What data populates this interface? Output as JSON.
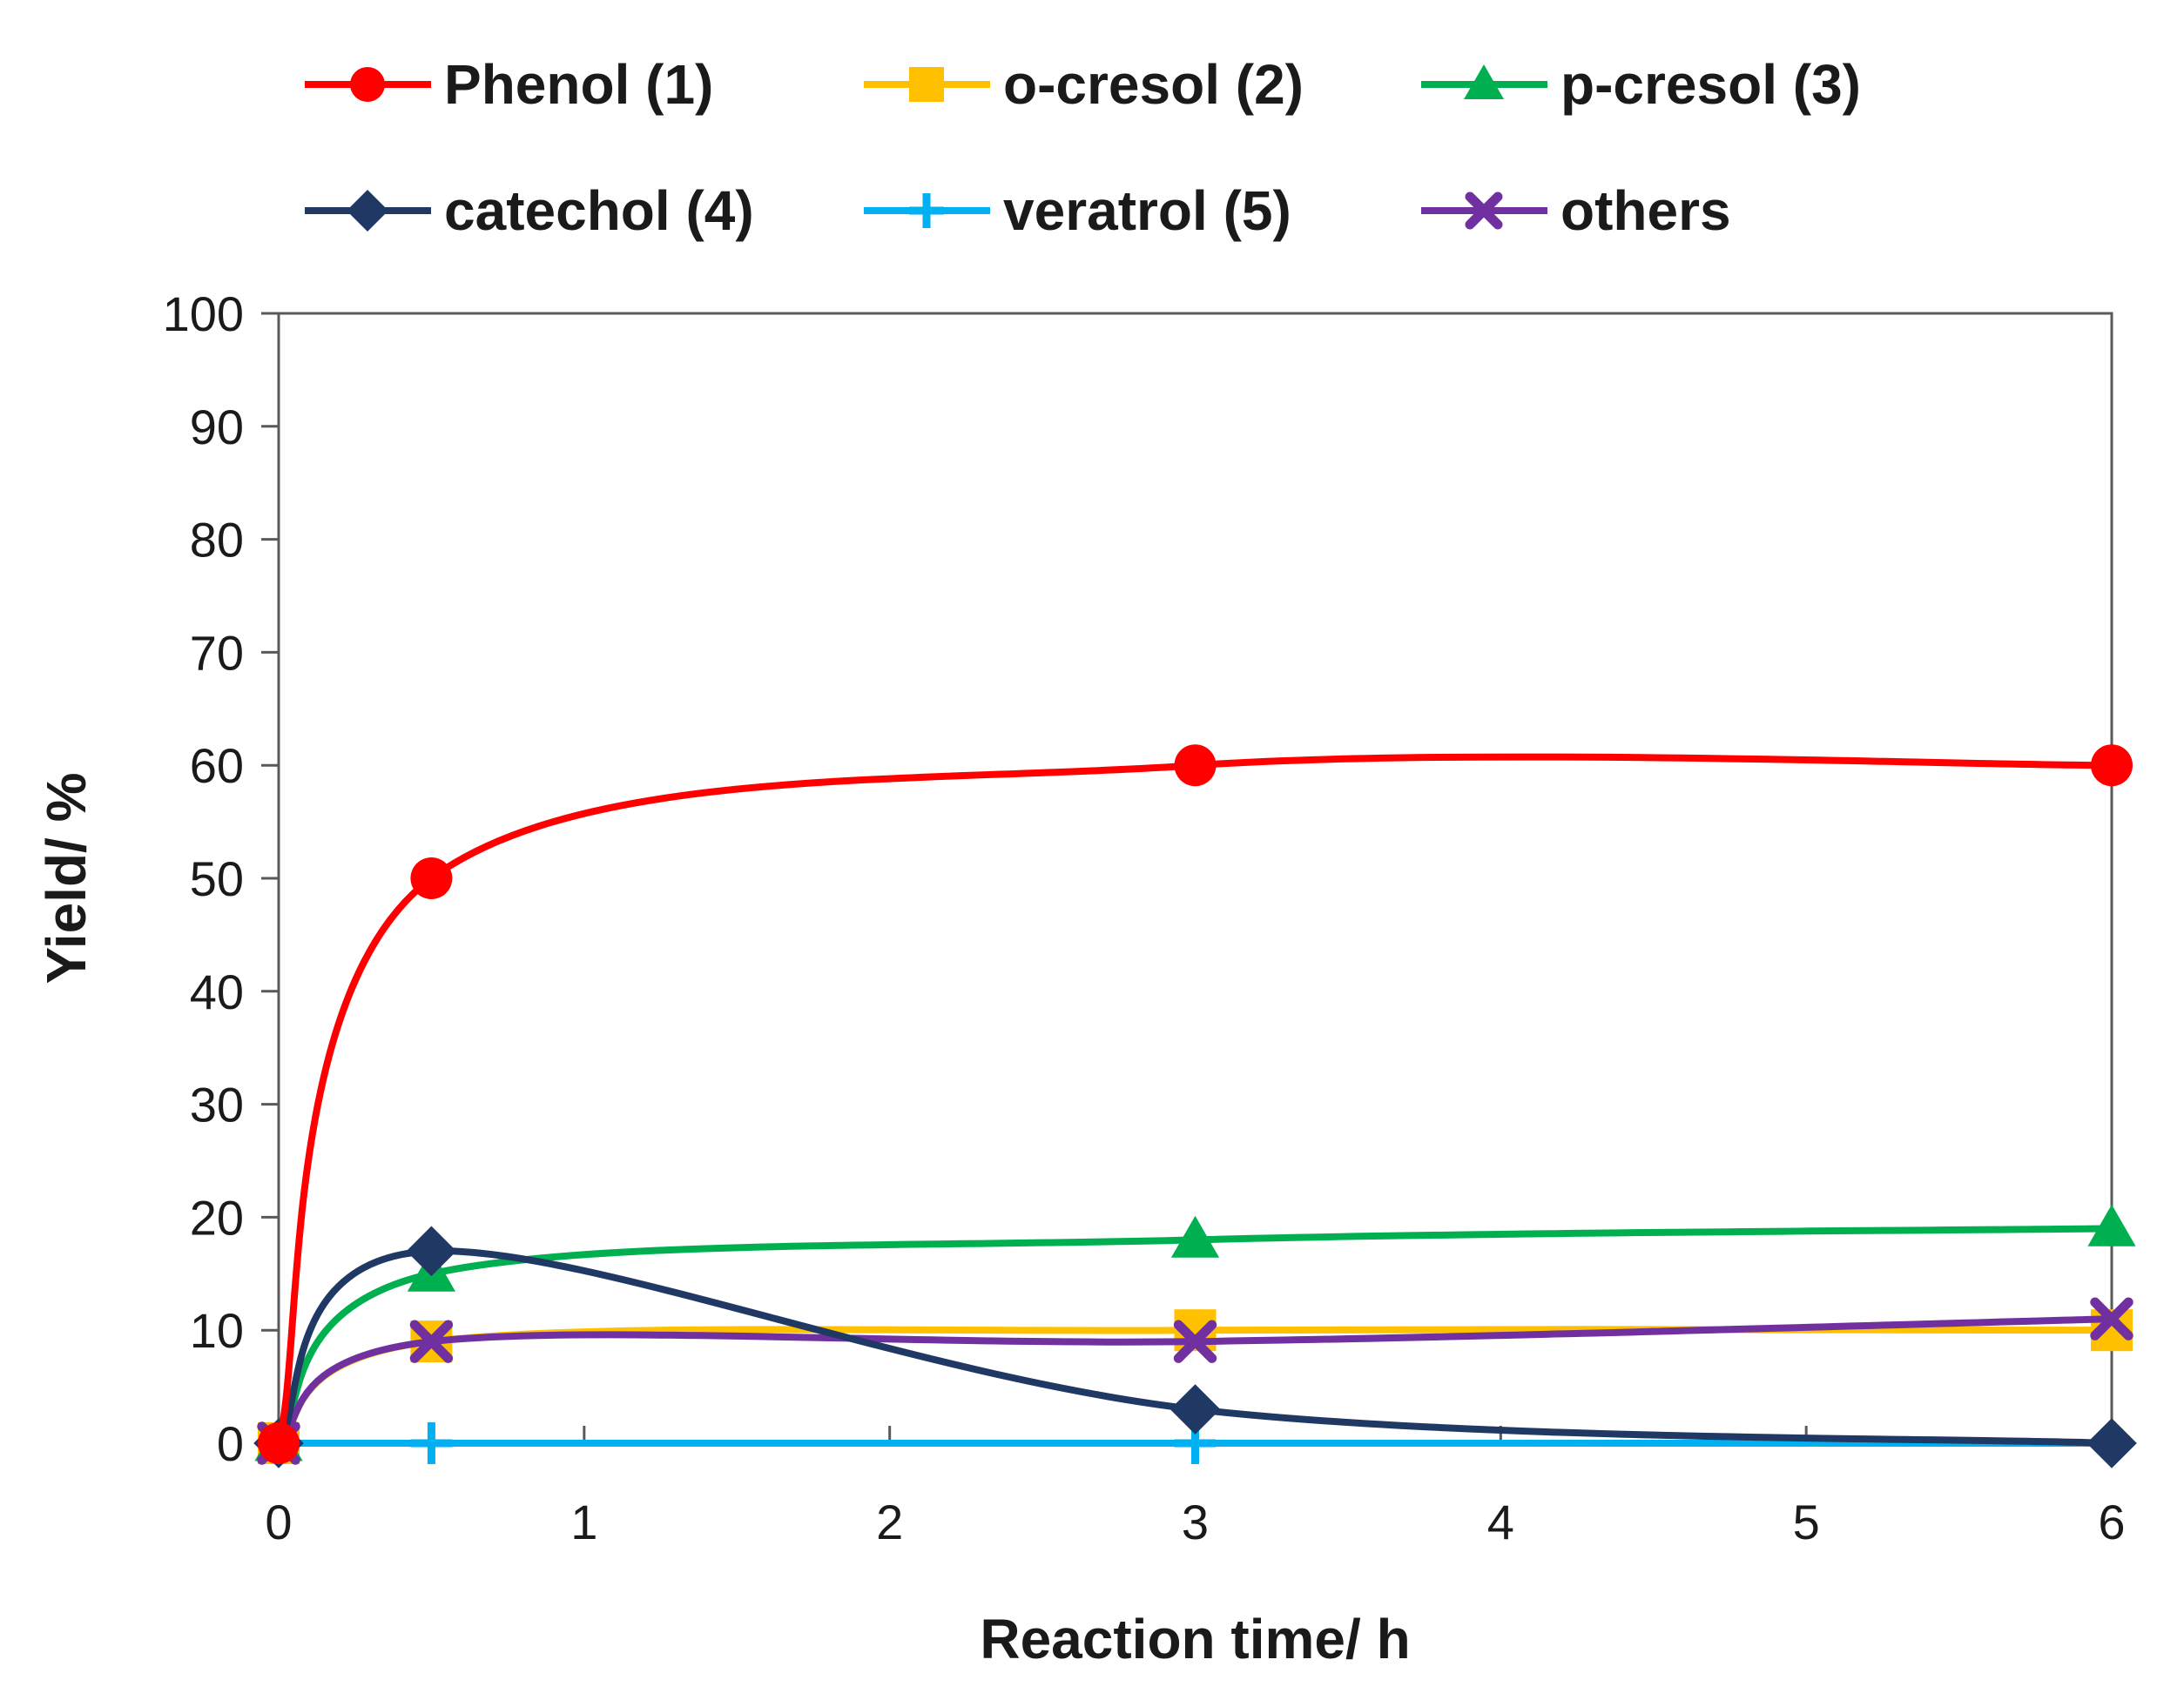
{
  "chart_data": {
    "type": "line",
    "title": "",
    "xlabel": "Reaction time/ h",
    "ylabel": "Yield/ %",
    "xlim": [
      0,
      6
    ],
    "ylim": [
      0,
      100
    ],
    "xticks": [
      0,
      1,
      2,
      3,
      4,
      5,
      6
    ],
    "yticks": [
      0,
      10,
      20,
      30,
      40,
      50,
      60,
      70,
      80,
      90,
      100
    ],
    "grid": false,
    "legend_position": "top",
    "series": [
      {
        "name": "Phenol (1)",
        "color": "#ff0000",
        "marker": "circle",
        "x": [
          0,
          0.5,
          3,
          6
        ],
        "y": [
          0,
          50,
          60,
          60
        ]
      },
      {
        "name": "o-cresol (2)",
        "color": "#ffc000",
        "marker": "square",
        "x": [
          0,
          0.5,
          3,
          6
        ],
        "y": [
          0,
          9,
          10,
          10
        ]
      },
      {
        "name": "p-cresol (3)",
        "color": "#00b050",
        "marker": "triangle",
        "x": [
          0,
          0.5,
          3,
          6
        ],
        "y": [
          0,
          15,
          18,
          19
        ]
      },
      {
        "name": "catechol (4)",
        "color": "#203864",
        "marker": "diamond",
        "x": [
          0,
          0.5,
          3,
          6
        ],
        "y": [
          0,
          17,
          3,
          0
        ]
      },
      {
        "name": "veratrol (5)",
        "color": "#00b0f0",
        "marker": "plus",
        "x": [
          0,
          0.5,
          3,
          6
        ],
        "y": [
          0,
          0,
          0,
          0
        ]
      },
      {
        "name": "others",
        "color": "#7030a0",
        "marker": "x",
        "x": [
          0,
          0.5,
          3,
          6
        ],
        "y": [
          0,
          9,
          9,
          11
        ]
      }
    ]
  }
}
